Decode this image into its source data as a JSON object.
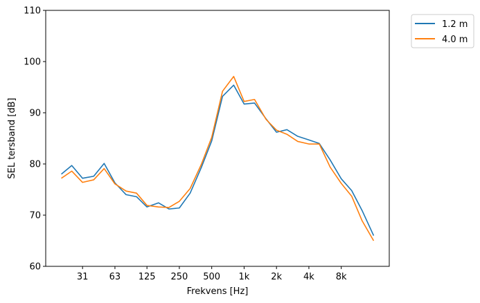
{
  "chart_data": {
    "type": "line",
    "xlabel": "Frekvens [Hz]",
    "ylabel": "SEL tersband [dB]",
    "x_scale": "log",
    "x_ticks": [
      31.5,
      63,
      125,
      250,
      500,
      1000,
      2000,
      4000,
      8000
    ],
    "x_tick_labels": [
      "31",
      "63",
      "125",
      "250",
      "500",
      "1k",
      "2k",
      "4k",
      "8k"
    ],
    "ylim": [
      60,
      110
    ],
    "y_ticks": [
      60,
      70,
      80,
      90,
      100,
      110
    ],
    "y_tick_labels": [
      "60",
      "70",
      "80",
      "90",
      "100",
      "110"
    ],
    "grid": false,
    "legend_placement": "outside top-right",
    "x": [
      20,
      25,
      31.5,
      40,
      50,
      63,
      80,
      100,
      125,
      160,
      200,
      250,
      315,
      400,
      500,
      630,
      800,
      1000,
      1250,
      1600,
      2000,
      2500,
      3150,
      4000,
      5000,
      6300,
      8000,
      10000,
      12500,
      16000
    ],
    "series": [
      {
        "name": "1.2 m",
        "color": "#1f77b4",
        "values": [
          78.0,
          79.7,
          77.2,
          77.6,
          80.1,
          76.3,
          74.0,
          73.6,
          71.6,
          72.4,
          71.2,
          71.4,
          74.3,
          79.3,
          84.5,
          93.2,
          95.4,
          91.7,
          91.9,
          88.8,
          86.2,
          86.7,
          85.4,
          84.7,
          84.0,
          80.8,
          77.1,
          74.8,
          70.9,
          66.0
        ]
      },
      {
        "name": "4.0 m",
        "color": "#ff7f0e",
        "values": [
          77.2,
          78.6,
          76.4,
          76.9,
          79.1,
          76.1,
          74.7,
          74.3,
          71.9,
          71.6,
          71.5,
          72.7,
          75.2,
          79.9,
          85.2,
          94.2,
          97.1,
          92.2,
          92.6,
          88.7,
          86.6,
          85.8,
          84.4,
          83.9,
          83.9,
          79.4,
          76.2,
          73.7,
          68.9,
          65.0
        ]
      }
    ]
  }
}
